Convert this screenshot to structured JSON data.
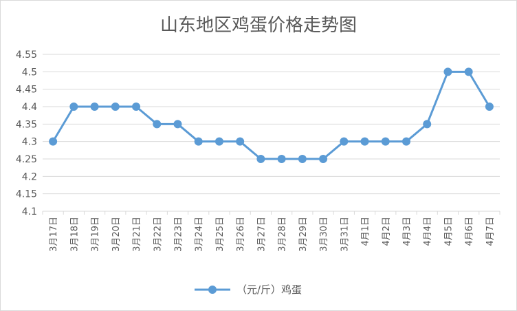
{
  "chart_data": {
    "type": "line",
    "title": "山东地区鸡蛋价格走势图",
    "xlabel": "",
    "ylabel": "",
    "categories": [
      "3月17日",
      "3月18日",
      "3月19日",
      "3月20日",
      "3月21日",
      "3月22日",
      "3月23日",
      "3月24日",
      "3月25日",
      "3月26日",
      "3月27日",
      "3月28日",
      "3月29日",
      "3月30日",
      "3月31日",
      "4月1日",
      "4月2日",
      "4月3日",
      "4月4日",
      "4月5日",
      "4月6日",
      "4月7日"
    ],
    "series": [
      {
        "name": "（元/斤）鸡蛋",
        "values": [
          4.3,
          4.4,
          4.4,
          4.4,
          4.4,
          4.35,
          4.35,
          4.3,
          4.3,
          4.3,
          4.25,
          4.25,
          4.25,
          4.25,
          4.3,
          4.3,
          4.3,
          4.3,
          4.35,
          4.5,
          4.5,
          4.4
        ]
      }
    ],
    "ylim": [
      4.1,
      4.55
    ],
    "yticks": [
      "4.1",
      "4.15",
      "4.2",
      "4.25",
      "4.3",
      "4.35",
      "4.4",
      "4.45",
      "4.5",
      "4.55"
    ],
    "grid": true,
    "legend": "bottom",
    "line_color": "#5b9bd5",
    "grid_color": "#d9d9d9"
  }
}
